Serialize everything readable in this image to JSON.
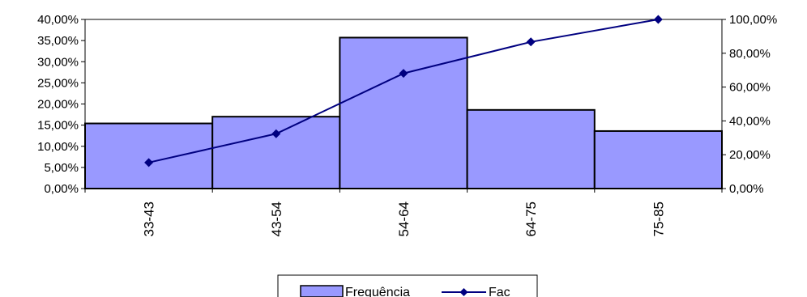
{
  "chart_data": {
    "type": "bar",
    "categories": [
      "33-43",
      "43-54",
      "54-64",
      "64-75",
      "75-85"
    ],
    "series": [
      {
        "name": "Frequência",
        "type": "bar",
        "axis": "left",
        "values": [
          15.4,
          17.0,
          35.7,
          18.6,
          13.6
        ],
        "color": "#9999FF"
      },
      {
        "name": "Fac",
        "type": "line",
        "axis": "right",
        "values": [
          15.4,
          32.4,
          68.1,
          86.7,
          100.0
        ],
        "color": "#000080"
      }
    ],
    "y_left": {
      "min": 0,
      "max": 40,
      "step": 5,
      "tick_labels": [
        "0,00%",
        "5,00%",
        "10,00%",
        "15,00%",
        "20,00%",
        "25,00%",
        "30,00%",
        "35,00%",
        "40,00%"
      ]
    },
    "y_right": {
      "min": 0,
      "max": 100,
      "step": 20,
      "tick_labels": [
        "0,00%",
        "20,00%",
        "40,00%",
        "60,00%",
        "80,00%",
        "100,00%"
      ]
    },
    "legend": {
      "position": "bottom",
      "items": [
        "Frequência",
        "Fac"
      ]
    },
    "grid": false
  }
}
